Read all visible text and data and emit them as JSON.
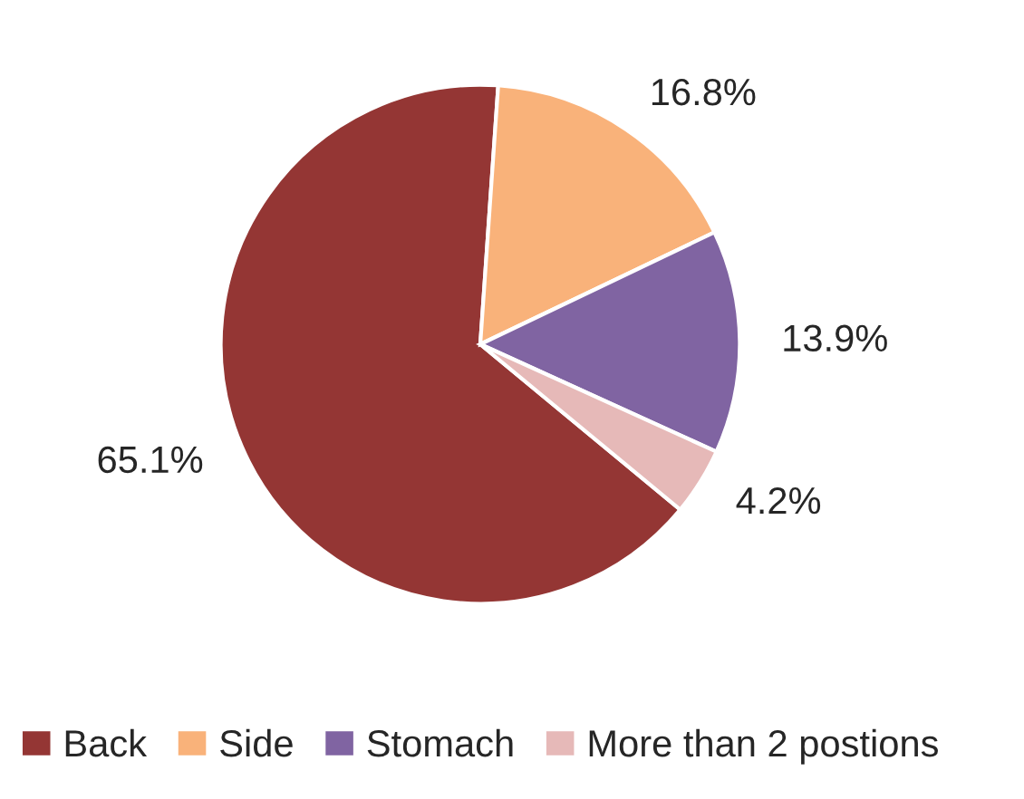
{
  "chart_data": {
    "type": "pie",
    "categories": [
      "Back",
      "Side",
      "Stomach",
      "More than 2 postions"
    ],
    "values": [
      65.1,
      16.8,
      13.9,
      4.2
    ],
    "value_labels": [
      "65.1%",
      "16.8%",
      "13.9%",
      "4.2%"
    ],
    "colors": [
      "#943634",
      "#f9b27a",
      "#8064a2",
      "#e6b9b8"
    ],
    "legend": "bottom"
  }
}
